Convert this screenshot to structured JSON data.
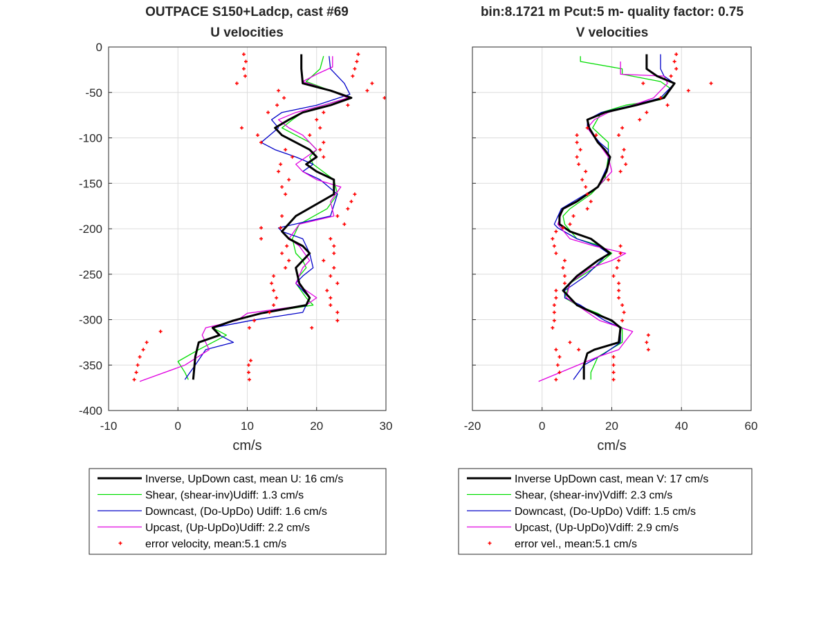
{
  "header": {
    "left_title_line1": "OUTPACE S150+Ladcp, cast #69",
    "left_title_line2": "U velocities",
    "right_title_line1": "bin:8.1721 m  Pcut:5 m- quality factor:  0.75",
    "right_title_line2": "V velocities"
  },
  "colors": {
    "inverse": "#000000",
    "shear": "#00dd00",
    "downcast": "#0000c8",
    "upcast": "#e000e0",
    "error": "#ff0000",
    "grid": "#dcdcdc"
  },
  "chart_data": [
    {
      "type": "line",
      "title": "OUTPACE S150+Ladcp, cast #69\nU velocities",
      "xlabel": "cm/s",
      "ylabel": "",
      "xlim": [
        -10,
        30
      ],
      "ylim": [
        -400,
        0
      ],
      "xticks": [
        -10,
        0,
        10,
        20,
        30
      ],
      "yticks": [
        0,
        -50,
        -100,
        -150,
        -200,
        -250,
        -300,
        -350,
        -400
      ],
      "grid": true,
      "legend_position": "below",
      "legend": [
        "Inverse, UpDown cast, mean U:  16 cm/s",
        "Shear, (shear-inv)Udiff:  1.3 cm/s",
        "Downcast, (Do-UpDo) Udiff:  1.6 cm/s",
        "Upcast, (Up-UpDo)Udiff:  2.2 cm/s",
        "error velocity, mean:5.1 cm/s"
      ],
      "series": [
        {
          "key": "inverse",
          "x": [
            17.8,
            17.8,
            18.0,
            22.0,
            25.0,
            22.0,
            18.0,
            16.0,
            14.0,
            15.0,
            17.0,
            19.0,
            20.0,
            18.5,
            20.0,
            22.5,
            22.5,
            17.0,
            15.0,
            16.0,
            18.0,
            19.0,
            18.0,
            17.0,
            17.5,
            19.0,
            18.5,
            12.0,
            8.0,
            5.0,
            6.0,
            3.0,
            2.5,
            2.3,
            2.2
          ],
          "y": [
            -8,
            -24,
            -40,
            -48,
            -56,
            -64,
            -72,
            -80,
            -89,
            -97,
            -105,
            -113,
            -121,
            -129,
            -137,
            -146,
            -162,
            -186,
            -203,
            -211,
            -219,
            -227,
            -235,
            -243,
            -260,
            -276,
            -284,
            -293,
            -301,
            -309,
            -317,
            -325,
            -341,
            -358,
            -366
          ]
        },
        {
          "key": "shear",
          "x": [
            21.0,
            20.5,
            18.5,
            22.0,
            24.5,
            21.0,
            18.0,
            16.5,
            15.0,
            17.0,
            19.0,
            20.0,
            19.0,
            19.5,
            22.5,
            23.0,
            21.5,
            17.5,
            16.5,
            17.0,
            18.0,
            18.5,
            17.5,
            17.0,
            18.5,
            19.5,
            12.0,
            8.0,
            5.0,
            7.0,
            3.0,
            0.0,
            1.0,
            1.5
          ],
          "y": [
            -10,
            -24,
            -38,
            -48,
            -56,
            -64,
            -72,
            -80,
            -89,
            -97,
            -105,
            -113,
            -121,
            -129,
            -146,
            -162,
            -178,
            -195,
            -211,
            -227,
            -235,
            -243,
            -252,
            -260,
            -276,
            -284,
            -293,
            -301,
            -309,
            -317,
            -333,
            -346,
            -358,
            -366
          ]
        },
        {
          "key": "downcast",
          "x": [
            21.8,
            22.0,
            24.0,
            24.8,
            20.0,
            15.0,
            13.5,
            14.5,
            12.0,
            14.0,
            17.0,
            19.5,
            18.0,
            20.5,
            23.0,
            22.0,
            14.5,
            15.0,
            18.0,
            19.0,
            19.5,
            18.0,
            17.0,
            19.0,
            18.0,
            10.5,
            5.0,
            6.0,
            8.0,
            4.0,
            2.5,
            1.0
          ],
          "y": [
            -10,
            -24,
            -40,
            -52,
            -64,
            -72,
            -80,
            -89,
            -105,
            -113,
            -121,
            -129,
            -137,
            -146,
            -162,
            -186,
            -199,
            -203,
            -211,
            -227,
            -243,
            -252,
            -260,
            -276,
            -292,
            -301,
            -309,
            -317,
            -325,
            -333,
            -350,
            -366
          ]
        },
        {
          "key": "upcast",
          "x": [
            22.3,
            22.3,
            20.0,
            18.0,
            22.0,
            24.5,
            21.0,
            17.0,
            14.5,
            16.0,
            18.0,
            20.0,
            17.0,
            18.0,
            20.0,
            23.5,
            22.0,
            22.5,
            17.5,
            16.0,
            17.5,
            19.0,
            18.0,
            17.0,
            20.0,
            18.5,
            10.0,
            8.5,
            4.0,
            3.5,
            4.5,
            1.0,
            -5.5
          ],
          "y": [
            -10,
            -22,
            -30,
            -38,
            -48,
            -56,
            -64,
            -72,
            -80,
            -89,
            -97,
            -113,
            -129,
            -137,
            -146,
            -154,
            -170,
            -186,
            -195,
            -211,
            -219,
            -235,
            -243,
            -260,
            -276,
            -284,
            -293,
            -301,
            -309,
            -317,
            -333,
            -350,
            -368
          ]
        }
      ],
      "error_points": {
        "x": [
          9.5,
          9.8,
          9.5,
          9.7,
          8.5,
          14.5,
          15.3,
          14.3,
          13.0,
          9.2,
          11.5,
          12.0,
          15.5,
          16.5,
          14.8,
          14.5,
          16.0,
          15.0,
          15.5,
          12.0,
          12.0,
          15.0,
          14.8,
          15.7,
          15.0,
          16.0,
          15.5,
          13.8,
          13.5,
          13.8,
          14.2,
          13.8,
          13.2,
          11.0,
          10.3,
          10.2,
          10.2,
          10.3,
          10.5,
          26.0,
          25.8,
          25.5,
          25.2,
          28.0,
          27.3,
          29.8,
          24.5,
          21.0,
          20.0,
          20.5,
          19.0,
          21.0,
          20.5,
          21.0,
          25.5,
          25.0,
          24.5,
          23.0,
          24.0,
          22.0,
          22.5,
          22.5,
          21.0,
          22.5,
          22.0,
          23.0,
          21.5,
          22.0,
          22.0,
          23.0,
          23.0,
          19.3,
          -2.5,
          -4.5,
          -5.0,
          -5.5,
          -5.8,
          -6.0,
          -6.3
        ],
        "y": [
          -8,
          -16,
          -24,
          -32,
          -40,
          -48,
          -56,
          -64,
          -72,
          -89,
          -97,
          -105,
          -113,
          -121,
          -129,
          -137,
          -146,
          -154,
          -162,
          -199,
          -211,
          -186,
          -199,
          -219,
          -227,
          -235,
          -243,
          -252,
          -260,
          -268,
          -276,
          -284,
          -292,
          -301,
          -309,
          -350,
          -358,
          -366,
          -345,
          -8,
          -16,
          -24,
          -32,
          -40,
          -48,
          -56,
          -64,
          -72,
          -80,
          -89,
          -97,
          -105,
          -113,
          -121,
          -162,
          -170,
          -178,
          -186,
          -195,
          -211,
          -219,
          -227,
          -235,
          -243,
          -252,
          -260,
          -268,
          -276,
          -284,
          -292,
          -301,
          -309,
          -313,
          -325,
          -333,
          -341,
          -350,
          -358,
          -366
        ]
      }
    },
    {
      "type": "line",
      "title": "bin:8.1721 m  Pcut:5 m- quality factor:  0.75\nV velocities",
      "xlabel": "cm/s",
      "ylabel": "",
      "xlim": [
        -20,
        60
      ],
      "ylim": [
        -400,
        0
      ],
      "xticks": [
        -20,
        0,
        20,
        40,
        60
      ],
      "yticks": [
        0,
        -50,
        -100,
        -150,
        -200,
        -250,
        -300,
        -350,
        -400
      ],
      "grid": true,
      "legend_position": "below",
      "legend": [
        "Inverse UpDown cast, mean V:  17 cm/s",
        "Shear, (shear-inv)Vdiff:  2.3 cm/s",
        "Downcast, (Do-UpDo) Vdiff:  1.5 cm/s",
        "Upcast, (Up-UpDo)Vdiff:  2.9 cm/s",
        "error vel., mean:5.1 cm/s"
      ],
      "series": [
        {
          "key": "inverse",
          "x": [
            30.0,
            30.0,
            33.0,
            38.0,
            35.0,
            27.0,
            18.0,
            13.0,
            13.5,
            16.0,
            18.0,
            19.5,
            18.5,
            16.0,
            10.0,
            6.0,
            5.0,
            5.0,
            8.0,
            14.0,
            19.5,
            16.0,
            10.0,
            6.0,
            8.0,
            10.0,
            15.0,
            20.0,
            22.5,
            22.0,
            15.0,
            13.0,
            12.0,
            12.0
          ],
          "y": [
            -8,
            -24,
            -32,
            -40,
            -56,
            -64,
            -72,
            -80,
            -89,
            -105,
            -113,
            -121,
            -137,
            -154,
            -170,
            -178,
            -186,
            -195,
            -203,
            -211,
            -227,
            -235,
            -252,
            -268,
            -276,
            -284,
            -293,
            -301,
            -309,
            -325,
            -333,
            -337,
            -350,
            -366
          ]
        },
        {
          "key": "shear",
          "x": [
            11.0,
            11.0,
            23.0,
            23.0,
            34.0,
            37.0,
            34.0,
            24.0,
            17.0,
            14.5,
            19.0,
            19.0,
            18.0,
            14.0,
            8.0,
            6.0,
            6.5,
            10.0,
            17.0,
            20.0,
            15.0,
            8.0,
            6.5,
            10.0,
            16.0,
            23.0,
            23.0,
            16.0,
            14.0,
            14.0
          ],
          "y": [
            -10,
            -16,
            -24,
            -30,
            -38,
            -46,
            -58,
            -64,
            -72,
            -89,
            -105,
            -121,
            -146,
            -162,
            -178,
            -186,
            -195,
            -211,
            -219,
            -227,
            -243,
            -260,
            -276,
            -284,
            -293,
            -309,
            -325,
            -341,
            -358,
            -366
          ]
        },
        {
          "key": "downcast",
          "x": [
            34.0,
            34.0,
            35.0,
            38.0,
            34.0,
            26.0,
            17.0,
            13.0,
            13.0,
            16.5,
            19.0,
            19.0,
            16.0,
            9.0,
            5.5,
            3.5,
            4.5,
            10.0,
            16.0,
            19.0,
            12.5,
            6.5,
            6.5,
            11.0,
            18.0,
            22.5,
            22.5,
            18.0,
            12.0,
            9.0
          ],
          "y": [
            -8,
            -24,
            -32,
            -40,
            -56,
            -64,
            -72,
            -80,
            -89,
            -105,
            -113,
            -129,
            -154,
            -170,
            -178,
            -195,
            -199,
            -211,
            -219,
            -227,
            -252,
            -268,
            -276,
            -284,
            -301,
            -309,
            -325,
            -337,
            -350,
            -366
          ]
        },
        {
          "key": "upcast",
          "x": [
            22.5,
            22.5,
            22.5,
            35.0,
            36.0,
            32.0,
            26.0,
            19.0,
            15.0,
            13.0,
            16.0,
            19.0,
            20.0,
            16.0,
            10.0,
            6.0,
            4.5,
            8.0,
            15.0,
            24.0,
            20.0,
            14.0,
            8.0,
            7.0,
            10.0,
            16.5,
            26.0,
            22.0,
            16.0,
            -1.0
          ],
          "y": [
            -16,
            -24,
            -30,
            -32,
            -40,
            -56,
            -64,
            -72,
            -80,
            -89,
            -105,
            -121,
            -137,
            -154,
            -170,
            -178,
            -195,
            -211,
            -219,
            -227,
            -235,
            -243,
            -260,
            -276,
            -284,
            -301,
            -313,
            -333,
            -341,
            -368
          ]
        }
      ],
      "error_points": {
        "x": [
          38.5,
          38.0,
          38.5,
          37.0,
          29.0,
          48.5,
          42.0,
          34.0,
          36.0,
          30.0,
          28.0,
          23.0,
          15.5,
          13.0,
          10.0,
          10.0,
          11.0,
          10.0,
          10.5,
          12.5,
          11.5,
          12.5,
          13.0,
          14.0,
          13.0,
          9.0,
          8.0,
          6.0,
          4.0,
          3.0,
          3.5,
          4.0,
          6.5,
          6.0,
          6.5,
          6.5,
          4.0,
          4.0,
          3.5,
          3.5,
          3.5,
          3.0,
          8.0,
          10.5,
          19.0,
          22.0,
          23.5,
          23.0,
          24.0,
          22.5,
          22.5,
          22.5,
          22.0,
          21.5,
          20.5,
          22.0,
          22.0,
          22.0,
          23.0,
          23.5,
          23.0,
          30.5,
          30.0,
          30.5,
          20.5,
          20.5,
          20.5,
          20.5,
          5.0,
          4.5,
          5.0,
          4.0,
          4.0
        ],
        "y": [
          -8,
          -16,
          -24,
          -32,
          -40,
          -40,
          -48,
          -56,
          -64,
          -72,
          -80,
          -89,
          -97,
          -89,
          -97,
          -105,
          -113,
          -121,
          -129,
          -137,
          -146,
          -154,
          -162,
          -170,
          -178,
          -186,
          -195,
          -199,
          -203,
          -211,
          -219,
          -227,
          -235,
          -243,
          -252,
          -260,
          -268,
          -276,
          -284,
          -292,
          -301,
          -309,
          -325,
          -333,
          -146,
          -97,
          -113,
          -121,
          -129,
          -137,
          -219,
          -227,
          -235,
          -243,
          -252,
          -260,
          -268,
          -276,
          -284,
          -292,
          -301,
          -317,
          -325,
          -333,
          -341,
          -350,
          -358,
          -366,
          -341,
          -350,
          -358,
          -366,
          -333
        ]
      }
    }
  ]
}
